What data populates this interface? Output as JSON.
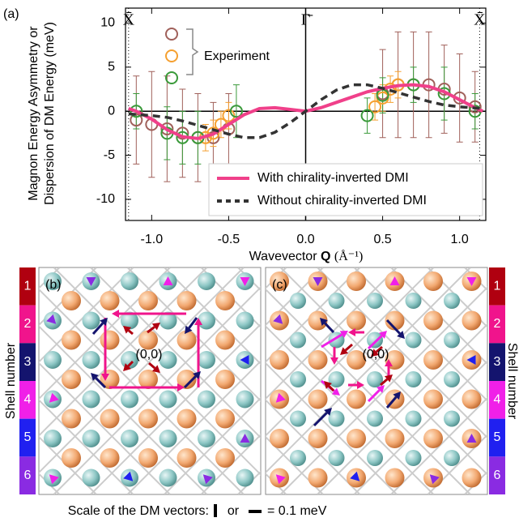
{
  "chart_data": {
    "type": "line",
    "panel_label": "(a)",
    "y_label": [
      "Magnon Energy Asymmetry or",
      "Dispersion of DM Energy (meV)"
    ],
    "x_label": {
      "text": "Wavevector",
      "symbol": "Q",
      "unit": "(Å⁻¹)"
    },
    "xlim": [
      -1.17,
      1.17
    ],
    "ylim": [
      -12.4,
      11.7
    ],
    "xticks": [
      {
        "value": -1,
        "label": "-1.0"
      },
      -0.5,
      {
        "value": 0,
        "label": "0.0"
      },
      0.5,
      {
        "value": 1,
        "label": "1.0"
      }
    ],
    "yticks": [
      -10,
      -5,
      0,
      5,
      10
    ],
    "symmetry_points": [
      {
        "x": -1.15,
        "label": "X̄",
        "style": "dotted"
      },
      {
        "x": 0,
        "label": "Γ̄",
        "style": "solid"
      },
      {
        "x": 1.13,
        "label": "X̄",
        "style": "dotted"
      }
    ],
    "experiment_label": "Experiment",
    "legend": "lower right",
    "series": [
      {
        "color": "#a0605a",
        "x": [
          -1.1,
          -1.0,
          -0.9,
          -0.8,
          -0.7,
          -0.6,
          -0.5,
          0.5,
          0.6,
          0.7,
          0.8,
          0.9,
          1.0,
          1.1
        ],
        "values": [
          -1,
          -1.5,
          -2,
          -2.5,
          -3,
          -3,
          -2,
          2,
          3,
          3,
          3,
          2.5,
          1.5,
          0.5
        ],
        "errors": [
          5,
          6,
          6,
          5,
          5,
          4,
          4,
          5,
          6,
          6,
          6,
          5,
          5,
          4
        ]
      },
      {
        "color": "#f5a030",
        "x": [
          -0.65,
          -0.6,
          -0.55,
          -0.5,
          0.45,
          0.5,
          0.55,
          0.6
        ],
        "values": [
          -3,
          -2.5,
          -1.5,
          -0.5,
          0.5,
          1.5,
          2.5,
          3
        ],
        "errors": [
          1.5,
          1.5,
          1.5,
          1.5,
          1.5,
          1.5,
          1.5,
          1.5
        ]
      },
      {
        "color": "#3a9a3a",
        "x": [
          -1.1,
          -0.9,
          -0.8,
          -0.7,
          -0.45,
          0.4,
          0.5,
          0.7,
          0.9,
          1.1
        ],
        "values": [
          0,
          -2.5,
          -3,
          -3,
          0,
          -0.5,
          1.8,
          3,
          2,
          0
        ],
        "errors": [
          2,
          3,
          3,
          3,
          3,
          2,
          2,
          2,
          3,
          2
        ]
      },
      {
        "name": "With chirality-inverted DMI",
        "color": "#f0408a",
        "style": "solid",
        "x": [
          -1.15,
          -1.1,
          -1.0,
          -0.9,
          -0.8,
          -0.7,
          -0.6,
          -0.5,
          -0.4,
          -0.3,
          -0.2,
          -0.1,
          0,
          0.1,
          0.2,
          0.3,
          0.4,
          0.5,
          0.6,
          0.7,
          0.8,
          0.9,
          1.0,
          1.1,
          1.15
        ],
        "values": [
          0.3,
          0,
          -0.9,
          -2.1,
          -2.9,
          -3.1,
          -2.6,
          -1.5,
          -0.4,
          0.3,
          0.4,
          0.2,
          0,
          0.4,
          1.0,
          1.6,
          2.2,
          2.6,
          2.9,
          3.0,
          2.8,
          2.2,
          1.3,
          0.4,
          0
        ]
      },
      {
        "name": "Without chirality-inverted DMI",
        "color": "#333333",
        "style": "dashed",
        "x": [
          -1.15,
          -1.0,
          -0.9,
          -0.8,
          -0.7,
          -0.6,
          -0.5,
          -0.4,
          -0.3,
          -0.2,
          -0.1,
          0,
          0.1,
          0.2,
          0.3,
          0.4,
          0.5,
          0.6,
          0.7,
          0.8,
          0.9,
          1.0,
          1.15
        ],
        "values": [
          -0.3,
          -0.5,
          -0.7,
          -1.1,
          -1.6,
          -2.1,
          -2.6,
          -3.0,
          -3.0,
          -2.4,
          -1.3,
          0,
          1.3,
          2.4,
          3.0,
          3.0,
          2.6,
          2.1,
          1.6,
          1.1,
          0.7,
          0.5,
          0.3
        ]
      }
    ]
  },
  "panels": [
    {
      "label": "(b)",
      "origin": "(0,0)"
    },
    {
      "label": "(c)",
      "origin": "(0,0)"
    }
  ],
  "shell_scale": {
    "title": "Shell number",
    "shells": [
      "1",
      "2",
      "3",
      "4",
      "5",
      "6"
    ],
    "colors": [
      "#b00010",
      "#f0148c",
      "#14146e",
      "#f020e8",
      "#2020f0",
      "#8a2be2"
    ]
  },
  "scale_note": {
    "prefix": "Scale of the DM vectors:",
    "middle": "or",
    "suffix": "= 0.1 meV"
  }
}
